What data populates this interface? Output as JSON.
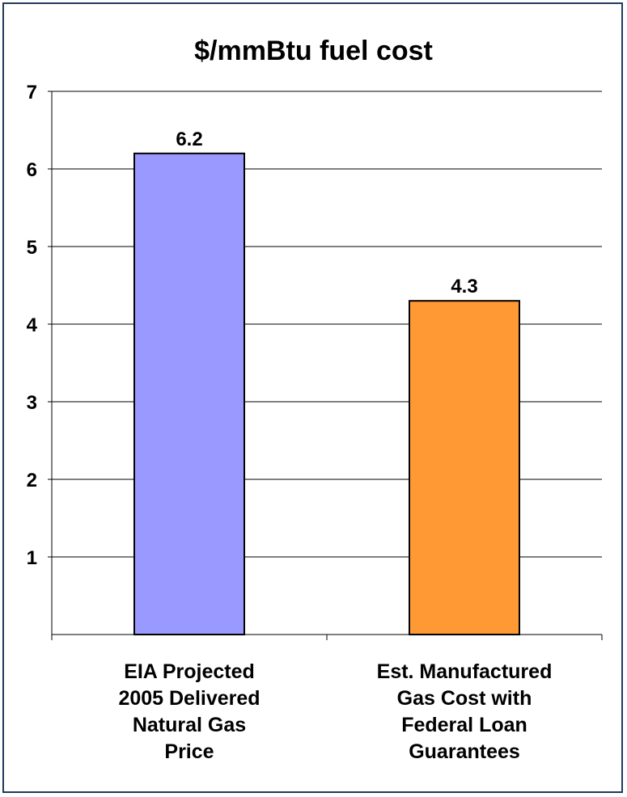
{
  "chart_data": {
    "type": "bar",
    "title": "$/mmBtu fuel cost",
    "categories": [
      [
        "EIA Projected",
        "2005 Delivered",
        "Natural Gas",
        "Price"
      ],
      [
        "Est. Manufactured",
        "Gas Cost with",
        "Federal Loan",
        "Guarantees"
      ]
    ],
    "values": [
      6.2,
      4.3
    ],
    "data_labels": [
      "6.2",
      "4.3"
    ],
    "bar_colors": [
      "#9999ff",
      "#ff9933"
    ],
    "bar_outline": "#000000",
    "yticks": [
      "1",
      "2",
      "3",
      "4",
      "5",
      "6",
      "7"
    ],
    "ylim": [
      0,
      7
    ],
    "grid": true,
    "xlabel": "",
    "ylabel": ""
  }
}
